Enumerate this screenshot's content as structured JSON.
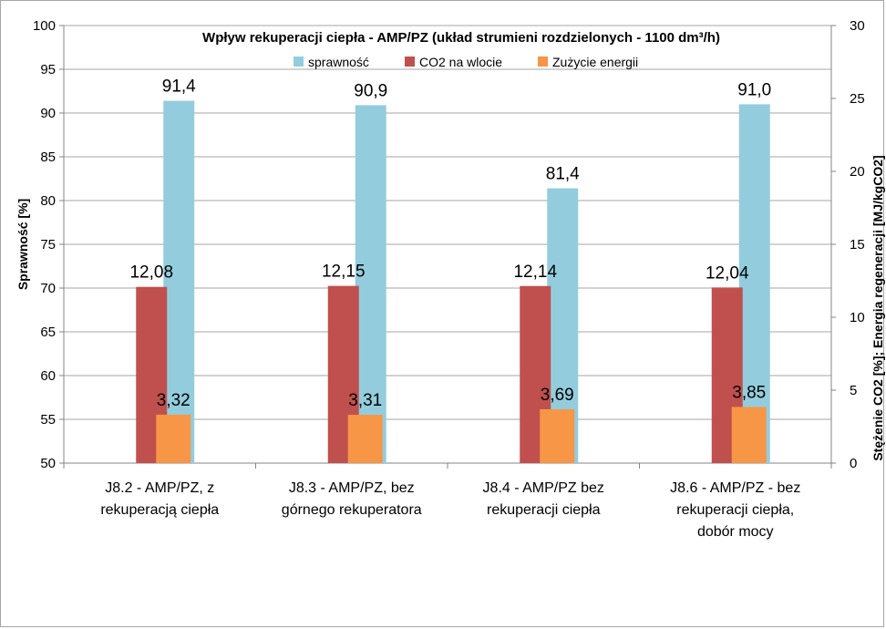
{
  "chart_data": {
    "type": "bar",
    "title": "Wpływ rekuperacji ciepła - AMP/PZ (układ strumieni rozdzielonych - 1100 dm³/h)",
    "categories": [
      [
        "J8.2 - AMP/PZ, z",
        "rekuperacją ciepła"
      ],
      [
        "J8.3 - AMP/PZ, bez",
        "górnego rekuperatora"
      ],
      [
        "J8.4 - AMP/PZ bez",
        "rekuperacji ciepła"
      ],
      [
        "J8.6 - AMP/PZ - bez",
        "rekuperacji ciepła,",
        "dobór mocy"
      ]
    ],
    "series": [
      {
        "name": "sprawność",
        "color": "#93cddd",
        "axis": "left",
        "values": [
          91.4,
          90.9,
          81.4,
          91.0
        ],
        "labels": [
          "91,4",
          "90,9",
          "81,4",
          "91,0"
        ]
      },
      {
        "name": "CO2 na wlocie",
        "color": "#c0504d",
        "axis": "right",
        "values": [
          12.08,
          12.15,
          12.14,
          12.04
        ],
        "labels": [
          "12,08",
          "12,15",
          "12,14",
          "12,04"
        ]
      },
      {
        "name": "Zużycie energii",
        "color": "#f79646",
        "axis": "right",
        "values": [
          3.32,
          3.31,
          3.69,
          3.85
        ],
        "labels": [
          "3,32",
          "3,31",
          "3,69",
          "3,85"
        ]
      }
    ],
    "ylabel": "Sprawność [%]",
    "ylim": [
      50,
      100
    ],
    "yticks": [
      50,
      55,
      60,
      65,
      70,
      75,
      80,
      85,
      90,
      95,
      100
    ],
    "y2label": "Stężenie CO2 [%]; Energia regeneracji [MJ/kgCO2]",
    "y2lim": [
      0,
      30
    ],
    "y2ticks": [
      0,
      5,
      10,
      15,
      20,
      25,
      30
    ],
    "grid": true,
    "legend_position": "top-center"
  }
}
